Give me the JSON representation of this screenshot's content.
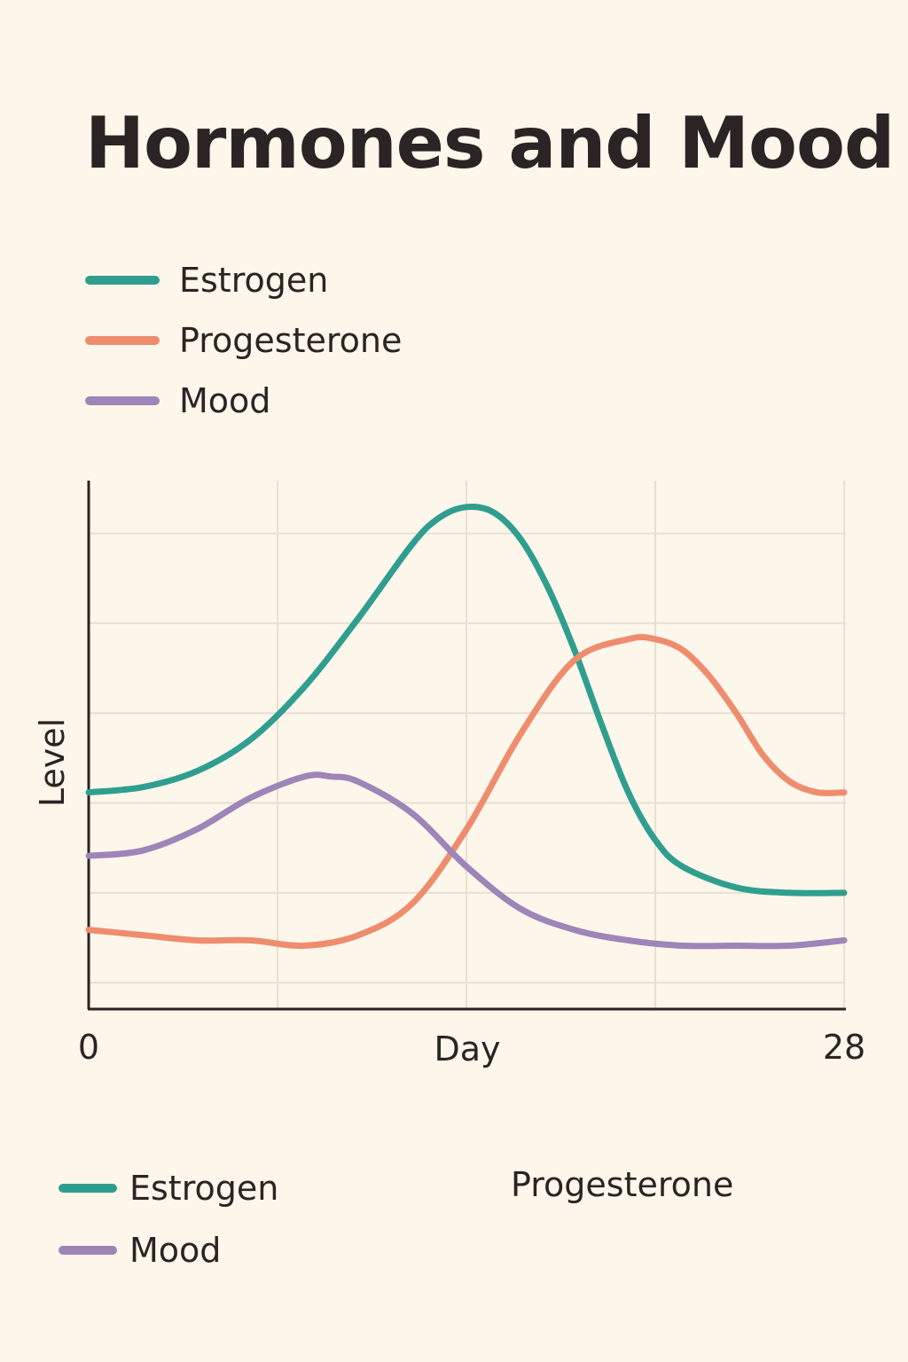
{
  "title": "Hormones and Mood",
  "legend_top": [
    {
      "label": "Estrogen",
      "color": "#2f9e8f",
      "icon": "line-swatch"
    },
    {
      "label": "Progesterone",
      "color": "#ee8c6e",
      "icon": "line-swatch"
    },
    {
      "label": "Mood",
      "color": "#9d85b8",
      "icon": "line-swatch"
    }
  ],
  "legend_bottom": [
    {
      "label": "Estrogen",
      "color": "#2f9e8f",
      "icon": "line-swatch"
    },
    {
      "label": "Mood",
      "color": "#9d85b8",
      "icon": "line-swatch"
    }
  ],
  "legend_bottom_text": "Progesterone",
  "chart_data": {
    "type": "line",
    "title": "Hormones and Mood",
    "xlabel": "Day",
    "ylabel": "Level",
    "xlim": [
      0,
      28
    ],
    "ylim": [
      0,
      10
    ],
    "x_tick_labels": [
      {
        "x": 0,
        "label": "0"
      },
      {
        "x": 28,
        "label": "28"
      }
    ],
    "grid": true,
    "x_grid_values": [
      7,
      14,
      21,
      28
    ],
    "y_grid_values": [
      0.5,
      2.2,
      3.9,
      5.6,
      7.3,
      9.0
    ],
    "series": [
      {
        "name": "Estrogen",
        "color": "#2f9e8f",
        "x": [
          0,
          2,
          4,
          6,
          8,
          10,
          12,
          13,
          14,
          15,
          16,
          17,
          18,
          19,
          20,
          21,
          22,
          24,
          26,
          28
        ],
        "y": [
          4.1,
          4.2,
          4.5,
          5.1,
          6.1,
          7.4,
          8.8,
          9.3,
          9.5,
          9.4,
          8.9,
          8.0,
          6.8,
          5.4,
          4.1,
          3.2,
          2.7,
          2.3,
          2.2,
          2.2
        ]
      },
      {
        "name": "Progesterone",
        "color": "#ee8c6e",
        "x": [
          0,
          2,
          4,
          6,
          8,
          10,
          12,
          14,
          16,
          18,
          20,
          21,
          22,
          23,
          24,
          25,
          26,
          27,
          28
        ],
        "y": [
          1.5,
          1.4,
          1.3,
          1.3,
          1.2,
          1.4,
          2.0,
          3.4,
          5.2,
          6.6,
          7.0,
          7.0,
          6.8,
          6.3,
          5.6,
          4.8,
          4.3,
          4.1,
          4.1
        ]
      },
      {
        "name": "Mood",
        "color": "#9d85b8",
        "x": [
          0,
          2,
          4,
          6,
          8,
          9,
          10,
          12,
          14,
          16,
          18,
          20,
          22,
          24,
          26,
          28
        ],
        "y": [
          2.9,
          3.0,
          3.4,
          4.0,
          4.4,
          4.4,
          4.3,
          3.7,
          2.7,
          1.9,
          1.5,
          1.3,
          1.2,
          1.2,
          1.2,
          1.3
        ]
      }
    ]
  }
}
